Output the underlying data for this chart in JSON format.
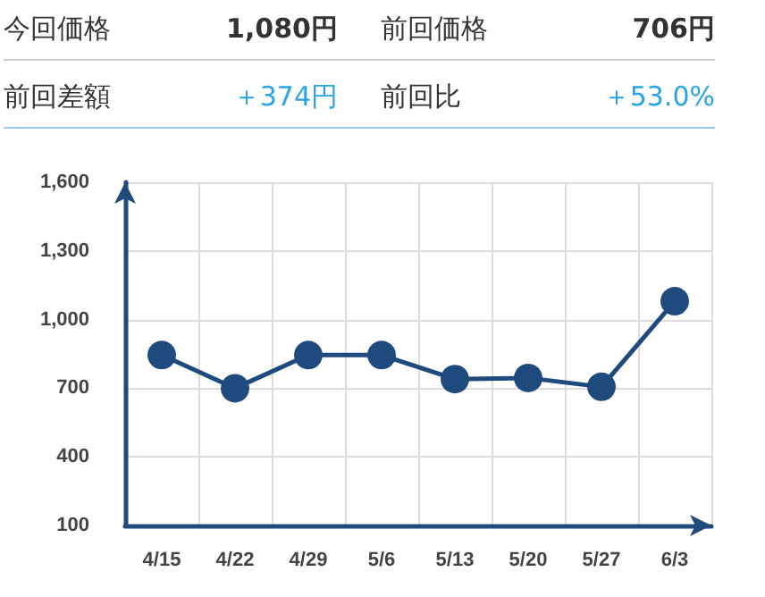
{
  "chart_data": {
    "type": "line",
    "annotations": [
      "今回価格",
      "1,080円",
      "前回価格",
      "706円",
      "前回差額",
      "＋374円",
      "前回比",
      "＋53.0%"
    ],
    "categories": [
      "4/15",
      "4/22",
      "4/29",
      "5/6",
      "5/13",
      "5/20",
      "5/27",
      "6/3"
    ],
    "series": [
      {
        "color": "#1f4a7e",
        "values": [
          845,
          700,
          845,
          845,
          740,
          745,
          706,
          1080
        ]
      }
    ],
    "ylim": [
      100,
      1600
    ],
    "yticks": [
      {
        "value": 100,
        "label": "100"
      },
      {
        "value": 400,
        "label": "400"
      },
      {
        "value": 700,
        "label": "700"
      },
      {
        "value": 1000,
        "label": "1,000"
      },
      {
        "value": 1300,
        "label": "1,300"
      },
      {
        "value": 1600,
        "label": "1,600"
      }
    ],
    "grid": true,
    "marker": "circle",
    "line_style": "solid"
  }
}
